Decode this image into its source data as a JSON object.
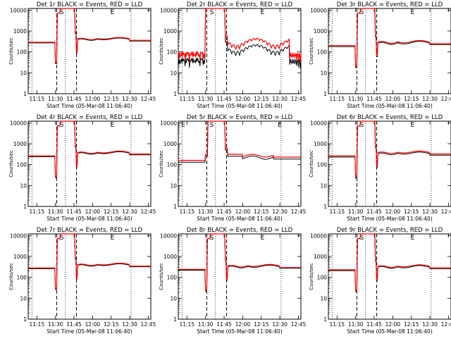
{
  "figure": {
    "note_colors": {
      "events": "#000000",
      "lld": "#ff0000"
    }
  },
  "chart_data": [
    {
      "type": "line",
      "title": "Det 1r BLACK = Events, RED = LLD",
      "xlabel": "Start Time (05-Mar-08 11:06:40)",
      "ylabel": "Counts/sec",
      "x_ticks": [
        "11:15",
        "11:30",
        "11:45",
        "12:00",
        "12:15",
        "12:30",
        "12:45"
      ],
      "y_ticks": [
        "1",
        "10",
        "100",
        "1000",
        "10000"
      ],
      "ylim": [
        1,
        12000
      ],
      "log_y": true,
      "markers": [
        "S",
        "E"
      ],
      "series": [
        {
          "color": "#000000",
          "profile": "standard",
          "base": 270,
          "peak": 12000
        },
        {
          "color": "#ff0000",
          "profile": "standard",
          "base": 290,
          "peak": 12000
        }
      ]
    },
    {
      "type": "line",
      "title": "Det 2r BLACK = Events, RED = LLD",
      "xlabel": "Start Time (05-Mar-08 11:06:40)",
      "ylabel": "Counts/sec",
      "x_ticks": [
        "11:15",
        "11:30",
        "11:45",
        "12:00",
        "12:15",
        "12:30",
        "12:45"
      ],
      "y_ticks": [
        "1",
        "10",
        "100",
        "1000",
        "10000"
      ],
      "ylim": [
        1,
        12000
      ],
      "log_y": true,
      "markers": [
        "S",
        "E"
      ],
      "series": [
        {
          "color": "#000000",
          "profile": "noisy",
          "base": 30,
          "peak": 12000
        },
        {
          "color": "#ff0000",
          "profile": "noisy",
          "base": 60,
          "peak": 12000
        }
      ]
    },
    {
      "type": "line",
      "title": "Det 3r BLACK = Events, RED = LLD",
      "xlabel": "Start Time (05-Mar-08 11:06:40)",
      "ylabel": "Counts/sec",
      "x_ticks": [
        "11:15",
        "11:30",
        "11:45",
        "12:00",
        "12:15",
        "12:30",
        "12:45"
      ],
      "y_ticks": [
        "1",
        "10",
        "100",
        "1000",
        "10000"
      ],
      "ylim": [
        1,
        12000
      ],
      "log_y": true,
      "markers": [
        "S",
        "E"
      ],
      "series": [
        {
          "color": "#000000",
          "profile": "standard",
          "base": 180,
          "peak": 12000
        },
        {
          "color": "#ff0000",
          "profile": "standard",
          "base": 200,
          "peak": 12000
        }
      ]
    },
    {
      "type": "line",
      "title": "Det 4r BLACK = Events, RED = LLD",
      "xlabel": "Start Time (05-Mar-08 11:06:40)",
      "ylabel": "Counts/sec",
      "x_ticks": [
        "11:15",
        "11:30",
        "11:45",
        "12:00",
        "12:15",
        "12:30",
        "12:45"
      ],
      "y_ticks": [
        "1",
        "10",
        "100",
        "1000",
        "10000"
      ],
      "ylim": [
        1,
        12000
      ],
      "log_y": true,
      "markers": [
        "S",
        "E"
      ],
      "series": [
        {
          "color": "#000000",
          "profile": "standard",
          "base": 240,
          "peak": 12000
        },
        {
          "color": "#ff0000",
          "profile": "standard",
          "base": 260,
          "peak": 12000
        }
      ]
    },
    {
      "type": "line",
      "title": "Det 5r BLACK = Events, RED = LLD",
      "xlabel": "Start Time (05-Mar-08 11:06:40)",
      "ylabel": "Counts/sec",
      "x_ticks": [
        "11:15",
        "11:30",
        "11:45",
        "12:00",
        "12:15",
        "12:30",
        "12:45"
      ],
      "y_ticks": [
        "1",
        "10",
        "100",
        "1000",
        "10000"
      ],
      "ylim": [
        1,
        12000
      ],
      "log_y": true,
      "markers": [
        "E",
        "S",
        "E"
      ],
      "series": [
        {
          "color": "#000000",
          "profile": "wide",
          "base": 130,
          "peak": 12000
        },
        {
          "color": "#ff0000",
          "profile": "wide",
          "base": 160,
          "peak": 12000
        }
      ]
    },
    {
      "type": "line",
      "title": "Det 6r BLACK = Events, RED = LLD",
      "xlabel": "Start Time (05-Mar-08 11:06:40)",
      "ylabel": "Counts/sec",
      "x_ticks": [
        "11:15",
        "11:30",
        "11:45",
        "12:00",
        "12:15",
        "12:30",
        "12:45"
      ],
      "y_ticks": [
        "1",
        "10",
        "100",
        "1000",
        "10000"
      ],
      "ylim": [
        1,
        12000
      ],
      "log_y": true,
      "markers": [
        "S",
        "E"
      ],
      "series": [
        {
          "color": "#000000",
          "profile": "standard",
          "base": 230,
          "peak": 12000
        },
        {
          "color": "#ff0000",
          "profile": "standard",
          "base": 260,
          "peak": 12000
        }
      ]
    },
    {
      "type": "line",
      "title": "Det 7r BLACK = Events, RED = LLD",
      "xlabel": "Start Time (05-Mar-08 11:06:40)",
      "ylabel": "Counts/sec",
      "x_ticks": [
        "11:15",
        "11:30",
        "11:45",
        "12:00",
        "12:15",
        "12:30",
        "12:45"
      ],
      "y_ticks": [
        "1",
        "10",
        "100",
        "1000",
        "10000"
      ],
      "ylim": [
        1,
        12000
      ],
      "log_y": true,
      "markers": [
        "S",
        "E"
      ],
      "series": [
        {
          "color": "#000000",
          "profile": "standard",
          "base": 260,
          "peak": 12000
        },
        {
          "color": "#ff0000",
          "profile": "standard",
          "base": 280,
          "peak": 12000
        }
      ]
    },
    {
      "type": "line",
      "title": "Det 8r BLACK = Events, RED = LLD",
      "xlabel": "Start Time (05-Mar-08 11:06:40)",
      "ylabel": "Counts/sec",
      "x_ticks": [
        "11:15",
        "11:30",
        "11:45",
        "12:00",
        "12:15",
        "12:30",
        "12:45"
      ],
      "y_ticks": [
        "1",
        "10",
        "100",
        "1000",
        "10000"
      ],
      "ylim": [
        1,
        12000
      ],
      "log_y": true,
      "markers": [
        "S",
        "E"
      ],
      "series": [
        {
          "color": "#000000",
          "profile": "standard",
          "base": 220,
          "peak": 12000
        },
        {
          "color": "#ff0000",
          "profile": "standard",
          "base": 240,
          "peak": 12000
        }
      ]
    },
    {
      "type": "line",
      "title": "Det 9r BLACK = Events, RED = LLD",
      "xlabel": "Start Time (05-Mar-08 11:06:40)",
      "ylabel": "Counts/sec",
      "x_ticks": [
        "11:15",
        "11:30",
        "11:45",
        "12:00",
        "12:15",
        "12:30",
        "12:45"
      ],
      "y_ticks": [
        "1",
        "10",
        "100",
        "1000",
        "10000"
      ],
      "ylim": [
        1,
        12000
      ],
      "log_y": true,
      "markers": [
        "S",
        "E"
      ],
      "series": [
        {
          "color": "#000000",
          "profile": "standard",
          "base": 210,
          "peak": 12000
        },
        {
          "color": "#ff0000",
          "profile": "standard",
          "base": 230,
          "peak": 12000
        }
      ]
    }
  ]
}
